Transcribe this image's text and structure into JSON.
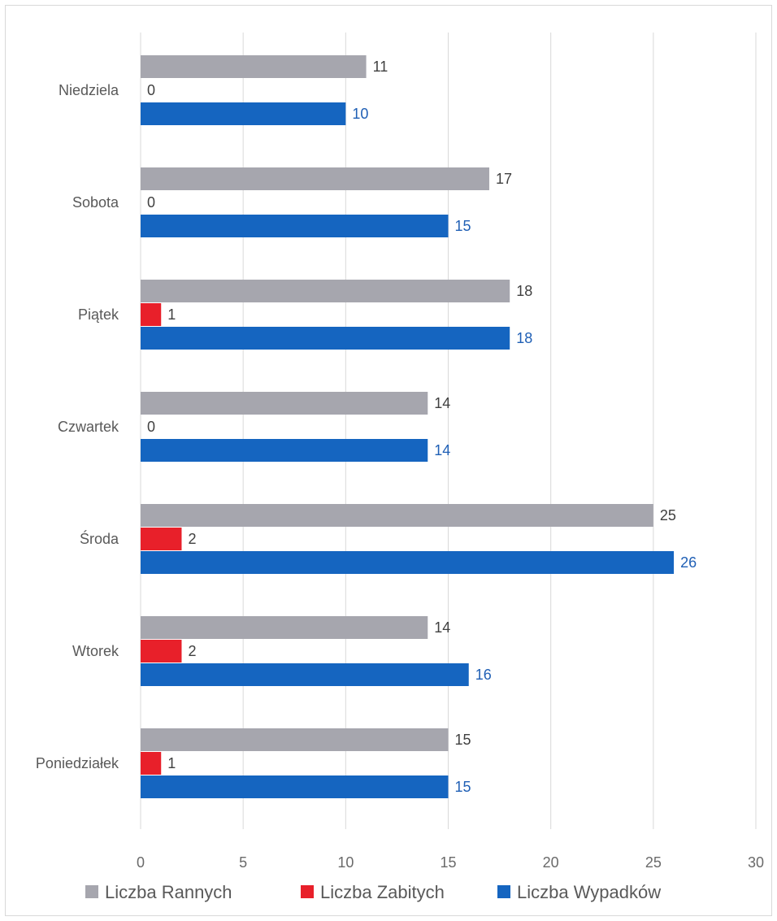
{
  "chart_data": {
    "type": "bar",
    "orientation": "horizontal",
    "categories": [
      "Niedziela",
      "Sobota",
      "Piątek",
      "Czwartek",
      "Środa",
      "Wtorek",
      "Poniedziałek"
    ],
    "series": [
      {
        "name": "Liczba Rannych",
        "values": [
          11,
          17,
          18,
          14,
          25,
          14,
          15
        ],
        "color": "#a6a6ae"
      },
      {
        "name": "Liczba Zabitych",
        "values": [
          0,
          0,
          1,
          0,
          2,
          2,
          1
        ],
        "color": "#e8202a"
      },
      {
        "name": "Liczba Wypadków",
        "values": [
          10,
          15,
          18,
          14,
          26,
          16,
          15
        ],
        "color": "#1565c0"
      }
    ],
    "xlim": [
      0,
      30
    ],
    "xticks": [
      "0",
      "5",
      "10",
      "15",
      "20",
      "25",
      "30"
    ],
    "grid": true,
    "legend": "bottom",
    "data_label_colors": [
      "#404040",
      "#404040",
      "#1f5fb5"
    ]
  }
}
